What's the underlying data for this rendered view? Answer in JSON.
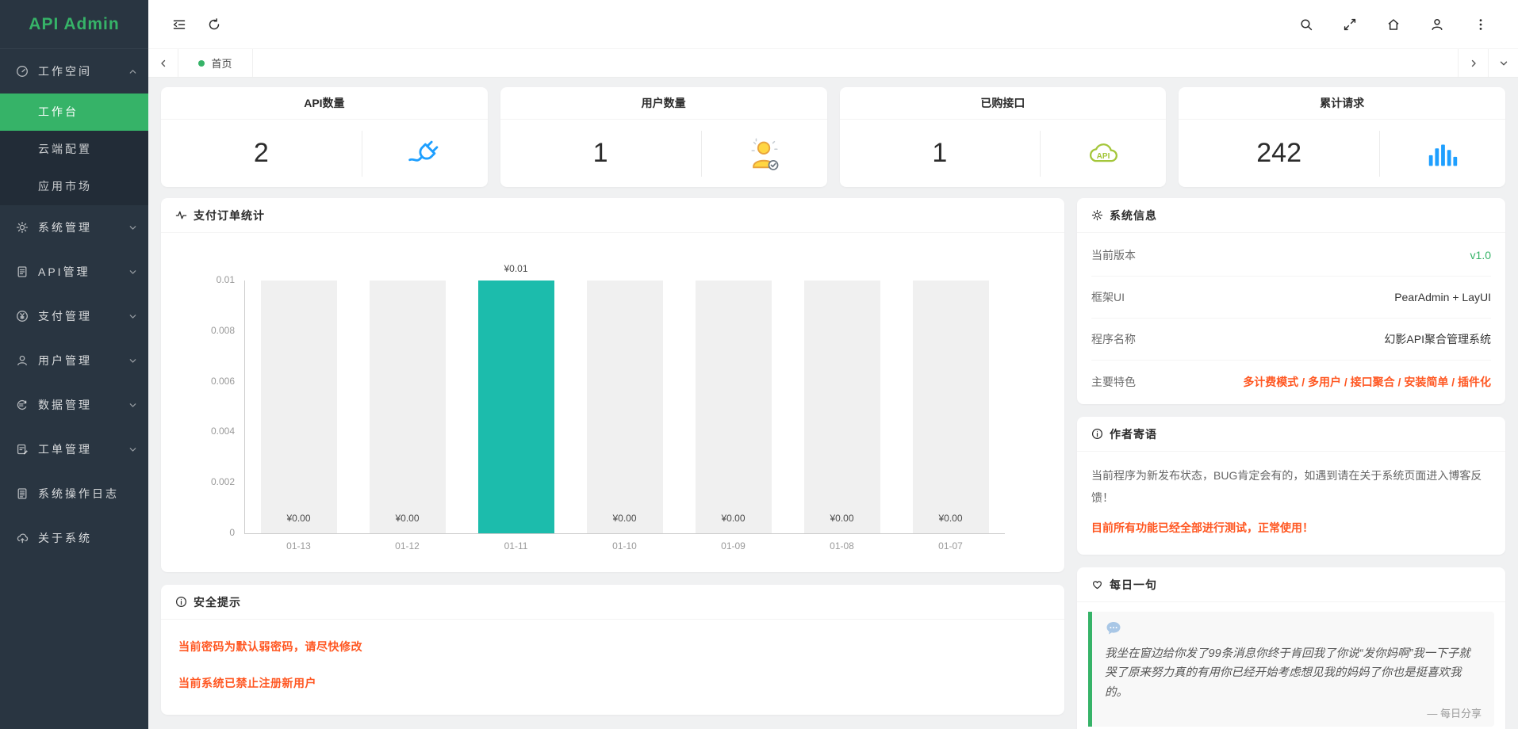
{
  "app": {
    "title": "API Admin"
  },
  "colors": {
    "accent_green": "#36B368",
    "orange": "#FF5722",
    "blue": "#1E9FFF",
    "yellow": "#FFD642",
    "olive": "#A4C63A",
    "sidebar_dark": "#293541"
  },
  "sidebar": {
    "logo": "API Admin",
    "items": [
      {
        "key": "workspace",
        "label": "工作空间",
        "icon": "dashboard-icon",
        "state": "expanded",
        "children": [
          {
            "key": "workbench",
            "label": "工作台",
            "active": true
          },
          {
            "key": "cloud-config",
            "label": "云端配置"
          },
          {
            "key": "app-market",
            "label": "应用市场"
          }
        ]
      },
      {
        "key": "system-mgmt",
        "label": "系统管理",
        "icon": "gear-icon",
        "state": "collapsed"
      },
      {
        "key": "api-mgmt",
        "label": "API管理",
        "icon": "document-icon",
        "state": "collapsed"
      },
      {
        "key": "payment-mgmt",
        "label": "支付管理",
        "icon": "yen-circle-icon",
        "state": "collapsed"
      },
      {
        "key": "user-mgmt",
        "label": "用户管理",
        "icon": "person-icon",
        "state": "collapsed"
      },
      {
        "key": "data-mgmt",
        "label": "数据管理",
        "icon": "data-circle-icon",
        "state": "collapsed"
      },
      {
        "key": "ticket-mgmt",
        "label": "工单管理",
        "icon": "ticket-icon",
        "state": "collapsed"
      },
      {
        "key": "op-logs",
        "label": "系统操作日志",
        "icon": "log-icon"
      },
      {
        "key": "about-system",
        "label": "关于系统",
        "icon": "cloud-up-icon"
      }
    ]
  },
  "topbar": {
    "left": [
      {
        "key": "collapse-menu",
        "icon": "collapse-menu-icon"
      },
      {
        "key": "refresh",
        "icon": "refresh-icon"
      }
    ],
    "right": [
      {
        "key": "search",
        "icon": "search-icon"
      },
      {
        "key": "fullscreen",
        "icon": "fullscreen-icon"
      },
      {
        "key": "home",
        "icon": "home-icon"
      },
      {
        "key": "user",
        "icon": "user-icon"
      },
      {
        "key": "more",
        "icon": "more-dots-icon"
      }
    ]
  },
  "tabs": {
    "items": [
      {
        "key": "home",
        "label": "首页",
        "active": true
      }
    ]
  },
  "stat_cards": [
    {
      "key": "api-count",
      "title": "API数量",
      "value": "2",
      "icon": "plug-icon",
      "icon_color": "#1E9FFF"
    },
    {
      "key": "user-count",
      "title": "用户数量",
      "value": "1",
      "icon": "user-sparkle-icon",
      "icon_color": "#FFD642"
    },
    {
      "key": "purchased-apis",
      "title": "已购接口",
      "value": "1",
      "icon": "api-cloud-icon",
      "icon_color": "#A4C63A"
    },
    {
      "key": "total-requests",
      "title": "累计请求",
      "value": "242",
      "icon": "bar-chart-icon",
      "icon_color": "#1E9FFF"
    }
  ],
  "chart_data": {
    "type": "bar",
    "title": "支付订单统计",
    "categories": [
      "01-13",
      "01-12",
      "01-11",
      "01-10",
      "01-09",
      "01-08",
      "01-07"
    ],
    "values": [
      0,
      0,
      0.01,
      0,
      0,
      0,
      0
    ],
    "value_labels": [
      "¥0.00",
      "¥0.00",
      "¥0.01",
      "¥0.00",
      "¥0.00",
      "¥0.00",
      "¥0.00"
    ],
    "ylim": [
      0,
      0.01
    ],
    "yticks": [
      0,
      0.002,
      0.004,
      0.006,
      0.008,
      0.01
    ],
    "bar_color": "#1CBCAC",
    "bar_background": "#F0F0F0",
    "grid": false,
    "legend": null,
    "xlabel": "",
    "ylabel": ""
  },
  "system_info": {
    "title": "系统信息",
    "rows": [
      {
        "key": "version",
        "label": "当前版本",
        "value": "v1.0",
        "value_color": "#36B368"
      },
      {
        "key": "framework",
        "label": "框架UI",
        "value": "PearAdmin + LayUI"
      },
      {
        "key": "program-name",
        "label": "程序名称",
        "value": "幻影API聚合管理系统"
      },
      {
        "key": "features",
        "label": "主要特色",
        "value": "多计费模式 / 多用户 / 接口聚合 / 安装简单 / 插件化",
        "value_color": "#FF5722",
        "bold": true
      }
    ]
  },
  "author_note": {
    "title": "作者寄语",
    "text": "当前程序为新发布状态，BUG肯定会有的，如遇到请在关于系统页面进入博客反馈！",
    "highlight": "目前所有功能已经全部进行测试，正常使用！"
  },
  "daily_quote": {
    "title": "每日一句",
    "quote": "我坐在窗边给你发了99条消息你终于肯回我了你说“发你妈啊”我一下子就哭了原来努力真的有用你已经开始考虑想见我的妈妈了你也是挺喜欢我的。",
    "attribution": "— 每日分享"
  },
  "security_tips": {
    "title": "安全提示",
    "tips": [
      "当前密码为默认弱密码，请尽快修改",
      "当前系统已禁止注册新用户"
    ]
  }
}
